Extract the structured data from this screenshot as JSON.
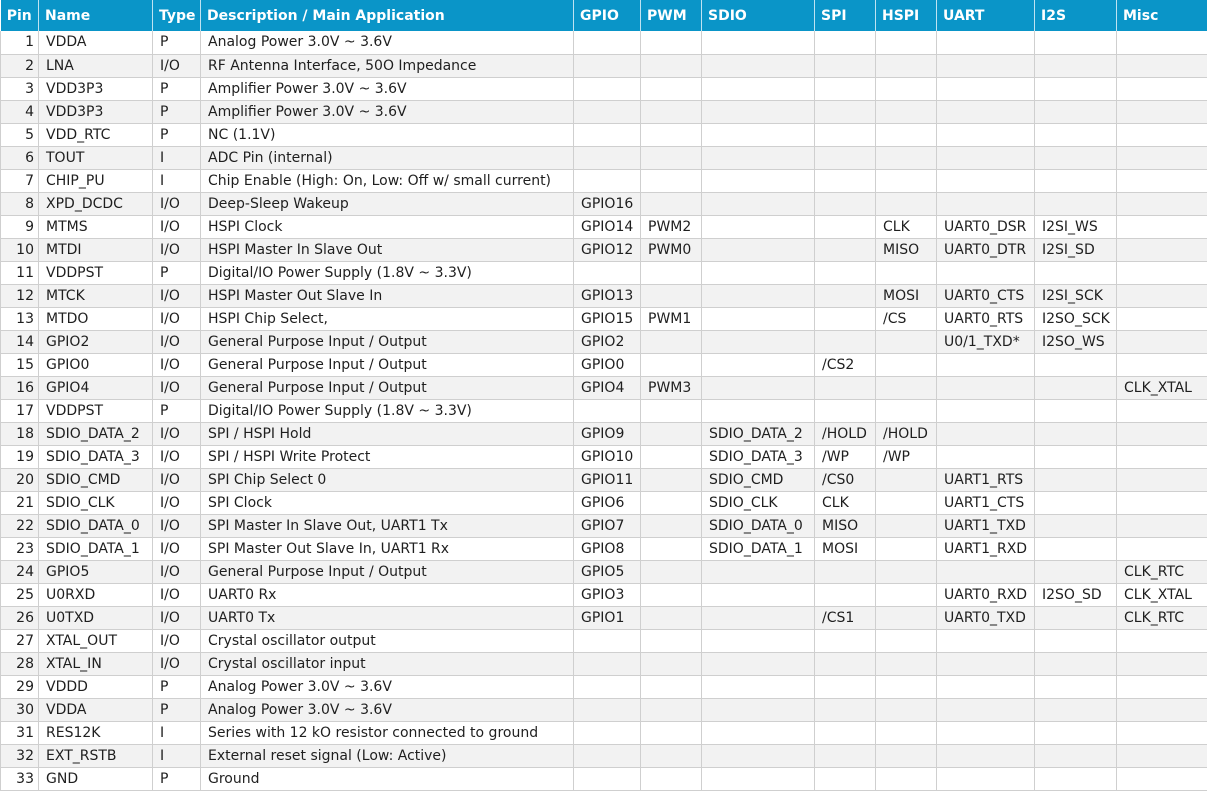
{
  "headers": [
    "Pin",
    "Name",
    "Type",
    "Description / Main Application",
    "GPIO",
    "PWM",
    "SDIO",
    "SPI",
    "HSPI",
    "UART",
    "I2S",
    "Misc"
  ],
  "rows": [
    [
      "1",
      "VDDA",
      "P",
      "Analog Power 3.0V ~ 3.6V",
      "",
      "",
      "",
      "",
      "",
      "",
      "",
      ""
    ],
    [
      "2",
      "LNA",
      "I/O",
      "RF Antenna Interface, 50O Impedance",
      "",
      "",
      "",
      "",
      "",
      "",
      "",
      ""
    ],
    [
      "3",
      "VDD3P3",
      "P",
      "Amplifier Power 3.0V ~ 3.6V",
      "",
      "",
      "",
      "",
      "",
      "",
      "",
      ""
    ],
    [
      "4",
      "VDD3P3",
      "P",
      "Amplifier Power 3.0V ~ 3.6V",
      "",
      "",
      "",
      "",
      "",
      "",
      "",
      ""
    ],
    [
      "5",
      "VDD_RTC",
      "P",
      "NC (1.1V)",
      "",
      "",
      "",
      "",
      "",
      "",
      "",
      ""
    ],
    [
      "6",
      "TOUT",
      "I",
      "ADC Pin (internal)",
      "",
      "",
      "",
      "",
      "",
      "",
      "",
      ""
    ],
    [
      "7",
      "CHIP_PU",
      "I",
      "Chip Enable (High: On, Low: Off w/ small current)",
      "",
      "",
      "",
      "",
      "",
      "",
      "",
      ""
    ],
    [
      "8",
      "XPD_DCDC",
      "I/O",
      "Deep-Sleep Wakeup",
      "GPIO16",
      "",
      "",
      "",
      "",
      "",
      "",
      ""
    ],
    [
      "9",
      "MTMS",
      "I/O",
      "HSPI Clock",
      "GPIO14",
      "PWM2",
      "",
      "",
      "CLK",
      "UART0_DSR",
      "I2SI_WS",
      ""
    ],
    [
      "10",
      "MTDI",
      "I/O",
      "HSPI Master In Slave Out",
      "GPIO12",
      "PWM0",
      "",
      "",
      "MISO",
      "UART0_DTR",
      "I2SI_SD",
      ""
    ],
    [
      "11",
      "VDDPST",
      "P",
      "Digital/IO Power Supply (1.8V ~ 3.3V)",
      "",
      "",
      "",
      "",
      "",
      "",
      "",
      ""
    ],
    [
      "12",
      "MTCK",
      "I/O",
      "HSPI Master Out Slave In",
      "GPIO13",
      "",
      "",
      "",
      "MOSI",
      "UART0_CTS",
      "I2SI_SCK",
      ""
    ],
    [
      "13",
      "MTDO",
      "I/O",
      "HSPI Chip Select,",
      "GPIO15",
      "PWM1",
      "",
      "",
      "/CS",
      "UART0_RTS",
      "I2SO_SCK",
      ""
    ],
    [
      "14",
      "GPIO2",
      "I/O",
      "General Purpose Input / Output",
      "GPIO2",
      "",
      "",
      "",
      "",
      "U0/1_TXD*",
      "I2SO_WS",
      ""
    ],
    [
      "15",
      "GPIO0",
      "I/O",
      "General Purpose Input / Output",
      "GPIO0",
      "",
      "",
      "/CS2",
      "",
      "",
      "",
      ""
    ],
    [
      "16",
      "GPIO4",
      "I/O",
      "General Purpose Input / Output",
      "GPIO4",
      "PWM3",
      "",
      "",
      "",
      "",
      "",
      "CLK_XTAL"
    ],
    [
      "17",
      "VDDPST",
      "P",
      "Digital/IO Power Supply (1.8V ~ 3.3V)",
      "",
      "",
      "",
      "",
      "",
      "",
      "",
      ""
    ],
    [
      "18",
      "SDIO_DATA_2",
      "I/O",
      "SPI / HSPI Hold",
      "GPIO9",
      "",
      "SDIO_DATA_2",
      "/HOLD",
      "/HOLD",
      "",
      "",
      ""
    ],
    [
      "19",
      "SDIO_DATA_3",
      "I/O",
      "SPI / HSPI Write Protect",
      "GPIO10",
      "",
      "SDIO_DATA_3",
      "/WP",
      "/WP",
      "",
      "",
      ""
    ],
    [
      "20",
      "SDIO_CMD",
      "I/O",
      "SPI Chip Select 0",
      "GPIO11",
      "",
      "SDIO_CMD",
      "/CS0",
      "",
      "UART1_RTS",
      "",
      ""
    ],
    [
      "21",
      "SDIO_CLK",
      "I/O",
      "SPI Clock",
      "GPIO6",
      "",
      "SDIO_CLK",
      "CLK",
      "",
      "UART1_CTS",
      "",
      ""
    ],
    [
      "22",
      "SDIO_DATA_0",
      "I/O",
      "SPI Master In Slave Out, UART1 Tx",
      "GPIO7",
      "",
      "SDIO_DATA_0",
      "MISO",
      "",
      "UART1_TXD",
      "",
      ""
    ],
    [
      "23",
      "SDIO_DATA_1",
      "I/O",
      "SPI Master Out Slave In, UART1 Rx",
      "GPIO8",
      "",
      "SDIO_DATA_1",
      "MOSI",
      "",
      "UART1_RXD",
      "",
      ""
    ],
    [
      "24",
      "GPIO5",
      "I/O",
      "General Purpose Input / Output",
      "GPIO5",
      "",
      "",
      "",
      "",
      "",
      "",
      "CLK_RTC"
    ],
    [
      "25",
      "U0RXD",
      "I/O",
      "UART0 Rx",
      "GPIO3",
      "",
      "",
      "",
      "",
      "UART0_RXD",
      "I2SO_SD",
      "CLK_XTAL"
    ],
    [
      "26",
      "U0TXD",
      "I/O",
      "UART0 Tx",
      "GPIO1",
      "",
      "",
      "/CS1",
      "",
      "UART0_TXD",
      "",
      "CLK_RTC"
    ],
    [
      "27",
      "XTAL_OUT",
      "I/O",
      "Crystal oscillator output",
      "",
      "",
      "",
      "",
      "",
      "",
      "",
      ""
    ],
    [
      "28",
      "XTAL_IN",
      "I/O",
      "Crystal oscillator input",
      "",
      "",
      "",
      "",
      "",
      "",
      "",
      ""
    ],
    [
      "29",
      "VDDD",
      "P",
      "Analog Power 3.0V ~ 3.6V",
      "",
      "",
      "",
      "",
      "",
      "",
      "",
      ""
    ],
    [
      "30",
      "VDDA",
      "P",
      "Analog Power 3.0V ~ 3.6V",
      "",
      "",
      "",
      "",
      "",
      "",
      "",
      ""
    ],
    [
      "31",
      "RES12K",
      "I",
      "Series with 12 kO resistor connected to ground",
      "",
      "",
      "",
      "",
      "",
      "",
      "",
      ""
    ],
    [
      "32",
      "EXT_RSTB",
      "I",
      "External reset signal (Low: Active)",
      "",
      "",
      "",
      "",
      "",
      "",
      "",
      ""
    ],
    [
      "33",
      "GND",
      "P",
      "Ground",
      "",
      "",
      "",
      "",
      "",
      "",
      "",
      ""
    ]
  ],
  "colors": {
    "header_bg": "#0a95c8",
    "header_text": "#ffffff",
    "row_alt": "#f2f2f2",
    "grid": "#cfcfcf"
  }
}
